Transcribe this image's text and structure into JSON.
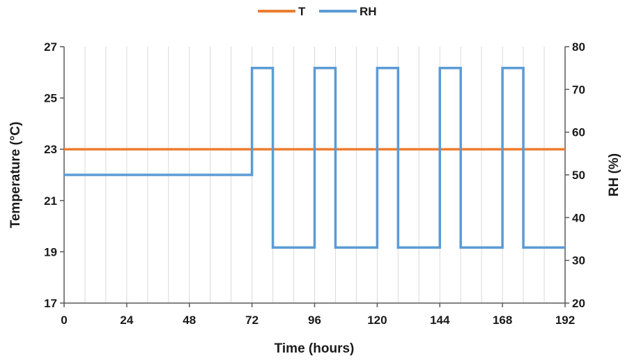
{
  "chart_data": {
    "type": "line",
    "x_axis": {
      "label": "Time (hours)",
      "range": [
        0,
        192
      ],
      "ticks": [
        "0",
        "24",
        "48",
        "72",
        "96",
        "120",
        "144",
        "168",
        "192"
      ],
      "minor_step": 8
    },
    "y_left": {
      "label": "Temperature (°C)",
      "range": [
        17,
        27
      ],
      "ticks": [
        "17",
        "19",
        "21",
        "23",
        "25",
        "27"
      ]
    },
    "y_right": {
      "label": "RH (%)",
      "range": [
        20,
        80
      ],
      "ticks": [
        "20",
        "30",
        "40",
        "50",
        "60",
        "70",
        "80"
      ]
    },
    "grid": "vertical",
    "legend_position": "top-center",
    "series": [
      {
        "name": "T",
        "axis": "left",
        "color": "#ED7D31",
        "x": [
          0,
          192
        ],
        "y": [
          23,
          23
        ]
      },
      {
        "name": "RH",
        "axis": "right",
        "color": "#5B9BD5",
        "step": true,
        "x": [
          0,
          72,
          72,
          80,
          80,
          96,
          96,
          104,
          104,
          120,
          120,
          128,
          128,
          144,
          144,
          152,
          152,
          168,
          168,
          176,
          176,
          192
        ],
        "y": [
          50,
          50,
          75,
          75,
          33,
          33,
          75,
          75,
          33,
          33,
          75,
          75,
          33,
          33,
          75,
          75,
          33,
          33,
          75,
          75,
          33,
          33
        ]
      }
    ]
  }
}
